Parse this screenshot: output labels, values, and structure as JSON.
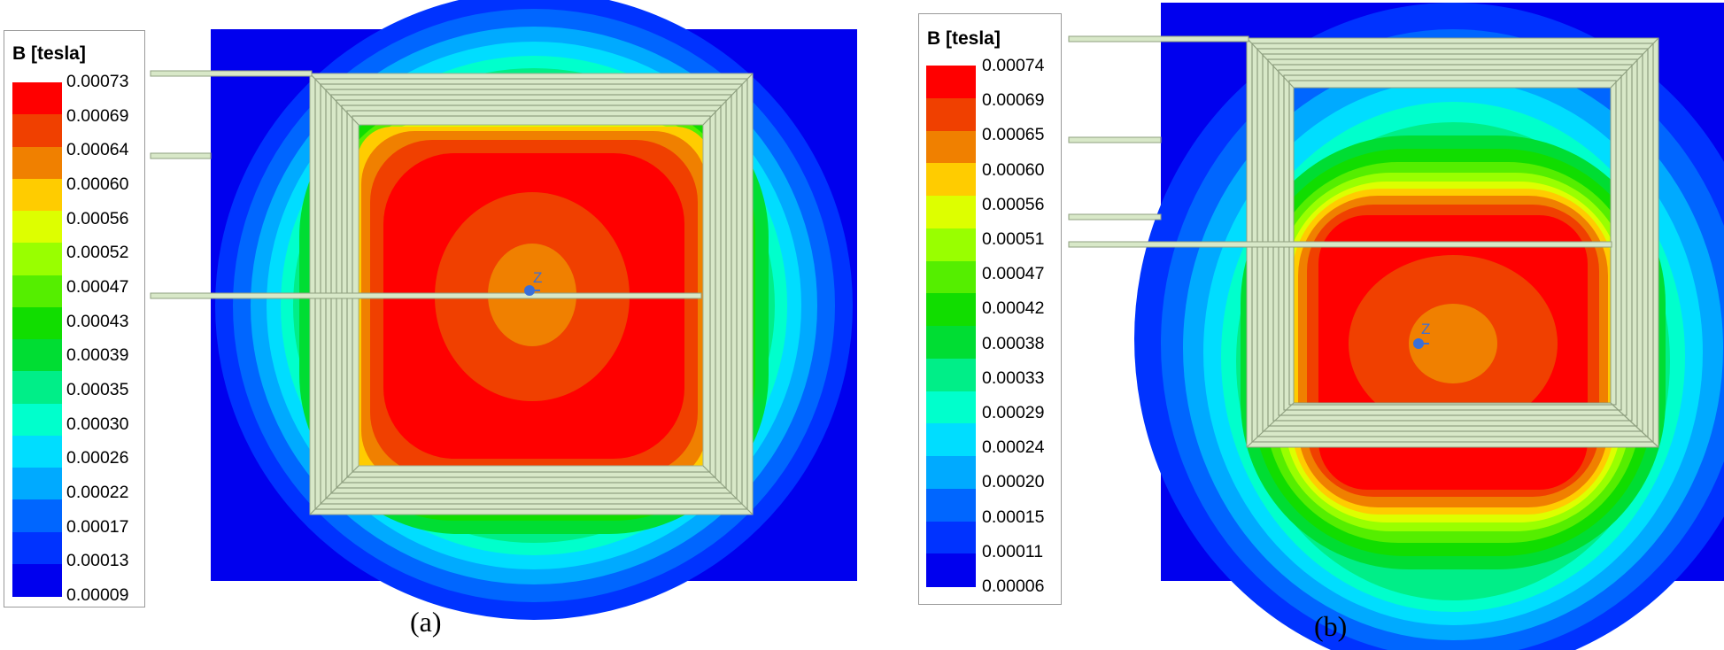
{
  "panels": [
    {
      "caption": "(a)",
      "legend_title": "B [tesla]",
      "legend_ticks": [
        "0.00073",
        "0.00069",
        "0.00064",
        "0.00060",
        "0.00056",
        "0.00052",
        "0.00047",
        "0.00043",
        "0.00039",
        "0.00035",
        "0.00030",
        "0.00026",
        "0.00022",
        "0.00017",
        "0.00013",
        "0.00009"
      ],
      "axis_label": "Z"
    },
    {
      "caption": "(b)",
      "legend_title": "B [tesla]",
      "legend_ticks": [
        "0.00074",
        "0.00069",
        "0.00065",
        "0.00060",
        "0.00056",
        "0.00051",
        "0.00047",
        "0.00042",
        "0.00038",
        "0.00033",
        "0.00029",
        "0.00024",
        "0.00020",
        "0.00015",
        "0.00011",
        "0.00006"
      ],
      "axis_label": "Z"
    }
  ],
  "colormap": [
    "#ff0000",
    "#f04000",
    "#f08000",
    "#ffcc00",
    "#ddff00",
    "#99ff00",
    "#55ee00",
    "#11dd00",
    "#00dd33",
    "#00ee88",
    "#00ffcc",
    "#00ddff",
    "#00aaff",
    "#0066ff",
    "#0033ff",
    "#0000ee"
  ],
  "coil_color": "#d8e8c8"
}
